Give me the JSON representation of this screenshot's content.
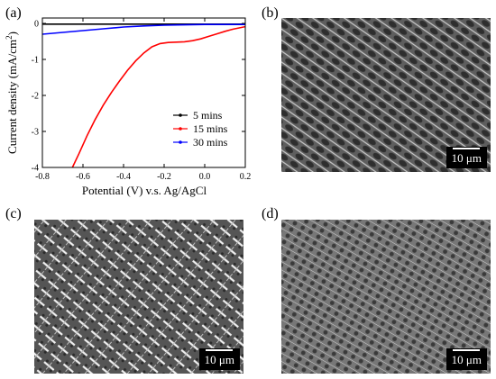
{
  "panels": {
    "a": "(a)",
    "b": "(b)",
    "c": "(c)",
    "d": "(d)"
  },
  "scale_bar": "10 μm",
  "chart_data": {
    "type": "line",
    "xlabel": "Potential (V) v.s. Ag/AgCl",
    "ylabel_main": "Current density (mA/cm",
    "ylabel_sup": "2",
    "ylabel_end": ")",
    "xlim": [
      -0.8,
      0.2
    ],
    "ylim": [
      -4,
      0.15
    ],
    "xticks": [
      -0.8,
      -0.6,
      -0.4,
      -0.2,
      0.0,
      0.2
    ],
    "xtick_labels": [
      "-0.8",
      "-0.6",
      "-0.4",
      "-0.2",
      "0.0",
      "0.2"
    ],
    "yticks": [
      0,
      -1,
      -2,
      -3,
      -4
    ],
    "ytick_labels": [
      "0",
      "-1",
      "-2",
      "-3",
      "-4"
    ],
    "grid": false,
    "legend_position": "lower-right",
    "series": [
      {
        "name": "5 mins",
        "color": "#000000",
        "x": [
          -0.8,
          -0.6,
          -0.4,
          -0.2,
          0.0,
          0.2
        ],
        "y": [
          -0.02,
          -0.02,
          -0.02,
          -0.02,
          -0.02,
          -0.02
        ]
      },
      {
        "name": "15 mins",
        "color": "#ff0000",
        "x": [
          -0.652,
          -0.62,
          -0.58,
          -0.54,
          -0.5,
          -0.46,
          -0.42,
          -0.38,
          -0.34,
          -0.3,
          -0.26,
          -0.22,
          -0.18,
          -0.14,
          -0.1,
          -0.06,
          -0.02,
          0.02,
          0.06,
          0.1,
          0.14,
          0.2
        ],
        "y": [
          -4.0,
          -3.62,
          -3.12,
          -2.67,
          -2.27,
          -1.92,
          -1.6,
          -1.3,
          -1.04,
          -0.82,
          -0.65,
          -0.56,
          -0.53,
          -0.52,
          -0.51,
          -0.48,
          -0.43,
          -0.36,
          -0.29,
          -0.22,
          -0.16,
          -0.09
        ]
      },
      {
        "name": "30 mins",
        "color": "#0000ff",
        "x": [
          -0.8,
          -0.7,
          -0.6,
          -0.5,
          -0.4,
          -0.3,
          -0.2,
          -0.1,
          0.0,
          0.1,
          0.2
        ],
        "y": [
          -0.3,
          -0.25,
          -0.2,
          -0.15,
          -0.1,
          -0.07,
          -0.05,
          -0.04,
          -0.03,
          -0.03,
          -0.03
        ]
      }
    ]
  }
}
